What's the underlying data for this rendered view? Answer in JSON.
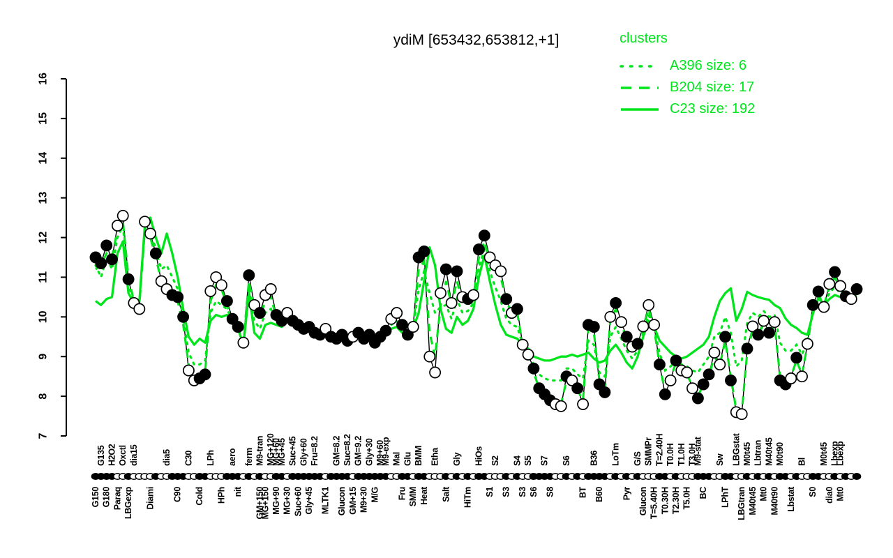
{
  "title": "ydiM [653432,653812,+1]",
  "colors": {
    "cluster_green": "#00e41c",
    "data_black": "#000000",
    "background": "#ffffff"
  },
  "legend": {
    "heading": "clusters",
    "entries": [
      {
        "label": "A396 size: 6",
        "style": "dotted"
      },
      {
        "label": "B204 size: 17",
        "style": "dashed"
      },
      {
        "label": "C23 size: 192",
        "style": "solid"
      }
    ]
  },
  "chart_data": {
    "type": "line",
    "title": "ydiM [653432,653812,+1]",
    "xlabel": "",
    "ylabel": "",
    "ylim": [
      7,
      16
    ],
    "yticks": [
      7,
      8,
      9,
      10,
      11,
      12,
      13,
      14,
      15,
      16
    ],
    "grid": false,
    "legend_position": "top-right",
    "n": 140,
    "series": [
      {
        "name": "expression",
        "color": "#000000",
        "marker": "circle-filled-or-open",
        "values": [
          11.5,
          11.35,
          11.8,
          11.45,
          12.3,
          12.55,
          10.95,
          10.35,
          10.2,
          12.4,
          12.1,
          11.6,
          10.9,
          10.7,
          10.55,
          10.5,
          10.0,
          8.65,
          8.4,
          8.45,
          8.55,
          10.65,
          11.0,
          10.8,
          10.4,
          9.95,
          9.75,
          9.35,
          11.05,
          10.3,
          10.1,
          10.55,
          10.7,
          10.05,
          9.9,
          10.1,
          9.9,
          9.8,
          9.7,
          9.75,
          9.6,
          9.55,
          9.7,
          9.5,
          9.45,
          9.55,
          9.4,
          9.5,
          9.6,
          9.45,
          9.55,
          9.35,
          9.5,
          9.65,
          9.95,
          10.1,
          9.8,
          9.55,
          9.75,
          11.5,
          11.65,
          9.0,
          8.6,
          10.6,
          11.2,
          10.35,
          11.15,
          10.5,
          10.45,
          10.55,
          11.7,
          12.05,
          11.5,
          11.3,
          11.15,
          10.45,
          10.1,
          10.2,
          9.3,
          9.05,
          8.7,
          8.2,
          8.05,
          7.9,
          7.8,
          7.75,
          8.5,
          8.4,
          8.2,
          7.8,
          9.8,
          9.75,
          8.3,
          8.1,
          10.0,
          10.35,
          9.87,
          9.5,
          9.25,
          9.32,
          9.76,
          10.3,
          9.8,
          8.8,
          8.05,
          8.4,
          8.9,
          8.65,
          8.6,
          8.2,
          7.95,
          8.3,
          8.55,
          9.1,
          8.8,
          9.5,
          8.4,
          7.6,
          7.55,
          9.2,
          9.76,
          9.55,
          9.9,
          9.6,
          9.87,
          8.4,
          8.3,
          8.45,
          8.97,
          8.5,
          9.32,
          10.3,
          10.64,
          10.25,
          10.83,
          11.13,
          10.78,
          10.52,
          10.45,
          10.7
        ],
        "filled": [
          1,
          1,
          1,
          1,
          0,
          0,
          1,
          0,
          0,
          0,
          0,
          1,
          0,
          0,
          1,
          1,
          1,
          0,
          0,
          1,
          1,
          0,
          0,
          0,
          1,
          1,
          1,
          0,
          1,
          0,
          1,
          0,
          0,
          1,
          1,
          0,
          1,
          1,
          1,
          1,
          1,
          1,
          0,
          1,
          1,
          1,
          1,
          0,
          1,
          1,
          1,
          1,
          1,
          1,
          0,
          0,
          1,
          1,
          0,
          1,
          1,
          0,
          0,
          0,
          1,
          0,
          1,
          0,
          1,
          0,
          1,
          1,
          0,
          0,
          0,
          1,
          0,
          1,
          0,
          0,
          1,
          1,
          1,
          1,
          0,
          0,
          1,
          0,
          1,
          0,
          1,
          1,
          1,
          1,
          0,
          1,
          0,
          1,
          0,
          1,
          0,
          0,
          0,
          1,
          1,
          0,
          1,
          0,
          0,
          0,
          1,
          1,
          1,
          0,
          0,
          1,
          1,
          0,
          0,
          1,
          0,
          1,
          0,
          1,
          0,
          1,
          1,
          0,
          1,
          0,
          0,
          1,
          1,
          0,
          0,
          1,
          0,
          1,
          0,
          1
        ]
      },
      {
        "name": "A396",
        "style": "dotted",
        "color": "#00e41c",
        "values": [
          11.3,
          11.0,
          11.5,
          11.2,
          12.0,
          12.3,
          10.8,
          10.4,
          10.35,
          12.25,
          12.2,
          11.7,
          11.2,
          11.3,
          11.0,
          10.7,
          10.0,
          9.1,
          8.8,
          8.8,
          8.9,
          10.1,
          10.4,
          10.3,
          10.2,
          9.9,
          9.7,
          9.35,
          10.75,
          9.9,
          9.7,
          10.1,
          10.2,
          9.9,
          9.8,
          9.95,
          9.85,
          9.7,
          9.7,
          9.68,
          9.6,
          9.5,
          9.6,
          9.5,
          9.42,
          9.5,
          9.35,
          9.45,
          9.5,
          9.4,
          9.5,
          9.3,
          9.45,
          9.58,
          9.8,
          9.9,
          9.68,
          9.5,
          9.7,
          10.7,
          11.15,
          10.6,
          10.1,
          10.25,
          10.3,
          9.95,
          10.45,
          10.1,
          10.15,
          10.35,
          11.25,
          11.7,
          11.15,
          10.75,
          10.4,
          9.95,
          9.8,
          9.75,
          9.3,
          9.1,
          8.8,
          8.55,
          8.45,
          8.4,
          8.4,
          8.4,
          8.7,
          8.7,
          8.55,
          8.45,
          9.4,
          9.3,
          8.6,
          8.5,
          9.5,
          9.75,
          9.45,
          9.15,
          8.95,
          9.15,
          9.6,
          10.05,
          9.7,
          9.1,
          8.65,
          8.75,
          8.9,
          8.8,
          8.75,
          8.65,
          8.6,
          8.8,
          9.0,
          9.5,
          9.6,
          10.0,
          9.6,
          8.75,
          8.9,
          9.85,
          10.1,
          10.0,
          10.15,
          10.0,
          10.05,
          9.35,
          9.15,
          9.15,
          9.3,
          9.05,
          9.4,
          10.15,
          10.5,
          10.3,
          10.6,
          10.75,
          10.6,
          10.5,
          10.42,
          10.6
        ]
      },
      {
        "name": "B204",
        "style": "dashed",
        "color": "#00e41c",
        "values": [
          11.2,
          11.3,
          11.6,
          11.5,
          12.2,
          12.4,
          11.0,
          10.4,
          10.3,
          12.2,
          12.0,
          11.5,
          10.9,
          10.8,
          10.6,
          10.4,
          9.8,
          8.8,
          8.5,
          8.3,
          8.6,
          10.4,
          10.8,
          10.7,
          10.3,
          9.9,
          9.7,
          9.4,
          10.9,
          10.2,
          10.0,
          10.4,
          10.5,
          10.0,
          9.85,
          10.0,
          9.85,
          9.75,
          9.7,
          9.7,
          9.6,
          9.5,
          9.65,
          9.5,
          9.4,
          9.5,
          9.35,
          9.45,
          9.55,
          9.4,
          9.5,
          9.3,
          9.45,
          9.6,
          9.9,
          10.0,
          9.75,
          9.5,
          9.7,
          11.2,
          11.4,
          9.6,
          9.0,
          10.3,
          10.9,
          10.3,
          10.9,
          10.4,
          10.4,
          10.5,
          11.5,
          11.9,
          11.4,
          11.2,
          11.0,
          10.4,
          10.1,
          10.1,
          9.3,
          9.0,
          8.6,
          8.2,
          8.0,
          7.9,
          7.85,
          7.8,
          8.4,
          8.35,
          8.15,
          7.9,
          9.7,
          9.6,
          8.4,
          8.2,
          9.9,
          10.2,
          9.8,
          9.45,
          9.2,
          9.3,
          9.7,
          10.2,
          9.7,
          8.8,
          8.1,
          8.45,
          8.85,
          8.6,
          8.55,
          8.25,
          8.0,
          8.3,
          8.5,
          9.0,
          8.8,
          9.4,
          8.5,
          7.65,
          7.6,
          9.1,
          9.7,
          9.5,
          9.85,
          9.55,
          9.8,
          8.5,
          8.35,
          8.5,
          8.9,
          8.55,
          9.3,
          10.2,
          10.55,
          10.3,
          10.75,
          11.0,
          10.7,
          10.5,
          10.4,
          10.65
        ]
      },
      {
        "name": "C23",
        "style": "solid",
        "color": "#00e41c",
        "values": [
          10.4,
          10.3,
          10.45,
          10.5,
          11.6,
          11.9,
          10.6,
          10.35,
          10.4,
          12.3,
          12.5,
          12.0,
          11.6,
          12.1,
          11.6,
          11.0,
          10.2,
          9.5,
          9.3,
          9.45,
          9.35,
          9.9,
          10.05,
          10.0,
          10.05,
          9.9,
          9.7,
          9.3,
          10.6,
          9.6,
          9.45,
          9.8,
          9.85,
          9.8,
          9.75,
          9.9,
          9.8,
          9.7,
          9.75,
          9.65,
          9.6,
          9.55,
          9.6,
          9.5,
          9.45,
          9.5,
          9.35,
          9.45,
          9.5,
          9.4,
          9.5,
          9.3,
          9.45,
          9.55,
          9.7,
          9.75,
          9.6,
          9.5,
          9.7,
          10.1,
          10.9,
          11.75,
          11.3,
          10.2,
          9.7,
          9.6,
          10.0,
          9.8,
          9.9,
          10.2,
          11.0,
          11.55,
          10.9,
          10.3,
          9.8,
          9.55,
          9.5,
          9.45,
          9.3,
          9.2,
          9.0,
          8.95,
          8.9,
          8.9,
          8.95,
          9.0,
          9.0,
          9.05,
          9.0,
          9.05,
          9.1,
          8.95,
          8.85,
          8.9,
          9.15,
          9.3,
          9.1,
          8.85,
          8.7,
          9.0,
          9.5,
          9.9,
          9.75,
          9.4,
          9.25,
          9.1,
          9.0,
          8.95,
          9.0,
          9.1,
          9.2,
          9.3,
          9.5,
          10.0,
          10.4,
          10.6,
          10.72,
          9.9,
          10.2,
          10.63,
          10.55,
          10.5,
          10.46,
          10.43,
          10.3,
          10.22,
          9.96,
          9.8,
          9.72,
          9.6,
          9.55,
          10.08,
          10.48,
          10.3,
          10.45,
          10.55,
          10.5,
          10.55,
          10.45,
          10.55
        ]
      }
    ],
    "xticks_top": [
      [
        1,
        "G135"
      ],
      [
        3,
        "H2O2"
      ],
      [
        5,
        "Oxctl"
      ],
      [
        7,
        "dia15"
      ],
      [
        13,
        "dia5"
      ],
      [
        17,
        "C30"
      ],
      [
        21,
        "LPh"
      ],
      [
        25,
        "aero"
      ],
      [
        28,
        "ferm"
      ],
      [
        30,
        "M9-tran"
      ],
      [
        32,
        "MG+120"
      ],
      [
        33,
        "MG+60"
      ],
      [
        34,
        "MG+45"
      ],
      [
        36,
        "Suc+45"
      ],
      [
        38,
        "Gly+60"
      ],
      [
        40,
        "Fru=8.2"
      ],
      [
        44,
        "GM=8.2"
      ],
      [
        46,
        "Suc=8.2"
      ],
      [
        48,
        "GM=9.2"
      ],
      [
        50,
        "Gly+30"
      ],
      [
        52,
        "M9+60"
      ],
      [
        53,
        "M9-exp"
      ],
      [
        55,
        "Mal"
      ],
      [
        57,
        "Glu"
      ],
      [
        59,
        "BMM"
      ],
      [
        62,
        "Etha"
      ],
      [
        66,
        "Gly"
      ],
      [
        70,
        "HiOs"
      ],
      [
        73,
        "S2"
      ],
      [
        77,
        "S4"
      ],
      [
        79,
        "S5"
      ],
      [
        82,
        "S7"
      ],
      [
        86,
        "S6"
      ],
      [
        91,
        "B36"
      ],
      [
        95,
        "LoTm"
      ],
      [
        99,
        "G/S"
      ],
      [
        101,
        "SMMPr"
      ],
      [
        103,
        "T=2.40H"
      ],
      [
        105,
        "T0.0H"
      ],
      [
        107,
        "T1.0H"
      ],
      [
        109,
        "T3.0H"
      ],
      [
        110,
        "M9-stat"
      ],
      [
        114,
        "Sw"
      ],
      [
        117,
        "LBGstat"
      ],
      [
        119,
        "M0t45"
      ],
      [
        121,
        "Lbtran"
      ],
      [
        123,
        "M40t45"
      ],
      [
        125,
        "M0t90"
      ],
      [
        129,
        "Bl"
      ],
      [
        133,
        "M0t45"
      ],
      [
        135,
        "Lbexp"
      ],
      [
        136,
        "Lbexp"
      ]
    ],
    "xticks_bottom": [
      [
        0,
        "G150"
      ],
      [
        2,
        "G180"
      ],
      [
        4,
        "Paraq"
      ],
      [
        6,
        "LBGexp"
      ],
      [
        10,
        "Diami"
      ],
      [
        15,
        "C90"
      ],
      [
        19,
        "Cold"
      ],
      [
        23,
        "HPh"
      ],
      [
        26,
        "nit"
      ],
      [
        30,
        "GM+150"
      ],
      [
        31,
        "MG+150"
      ],
      [
        33,
        "MG+90"
      ],
      [
        35,
        "MG+30"
      ],
      [
        37,
        "Suc+60"
      ],
      [
        39,
        "Gly+45"
      ],
      [
        42,
        "MLTK1"
      ],
      [
        45,
        "Glucon"
      ],
      [
        47,
        "GM+15"
      ],
      [
        49,
        "M9+30"
      ],
      [
        51,
        "M/G"
      ],
      [
        56,
        "Fru"
      ],
      [
        58,
        "SMM"
      ],
      [
        60,
        "Heat"
      ],
      [
        64,
        "Salt"
      ],
      [
        68,
        "HiTm"
      ],
      [
        72,
        "S1"
      ],
      [
        75,
        "S3"
      ],
      [
        78,
        "S3"
      ],
      [
        80,
        "S6"
      ],
      [
        83,
        "S8"
      ],
      [
        89,
        "BT"
      ],
      [
        92,
        "B60"
      ],
      [
        97,
        "Pyr"
      ],
      [
        100,
        "Glucon"
      ],
      [
        102,
        "T=5.40H"
      ],
      [
        104,
        "T0.30H"
      ],
      [
        106,
        "T2.30H"
      ],
      [
        108,
        "T5.0H"
      ],
      [
        111,
        "BC"
      ],
      [
        115,
        "LPhT"
      ],
      [
        118,
        "LBGtran"
      ],
      [
        120,
        "M40t45"
      ],
      [
        122,
        "Mt0"
      ],
      [
        124,
        "M40t90"
      ],
      [
        127,
        "Lbstat"
      ],
      [
        131,
        "S0"
      ],
      [
        134,
        "dia0"
      ],
      [
        136,
        "Mt0"
      ]
    ]
  }
}
